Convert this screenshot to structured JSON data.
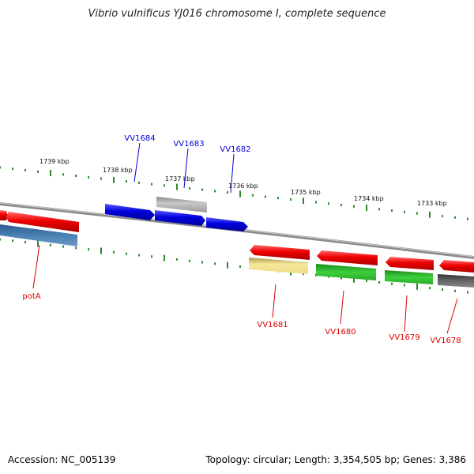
{
  "title": "Vibrio vulnificus YJ016 chromosome I, complete sequence",
  "footer": {
    "accession": "Accession: NC_005139",
    "summary": "Topology: circular; Length: 3,354,505 bp; Genes: 3,386"
  },
  "scale": {
    "unit": "kbp",
    "ticks": [
      "1739 kbp",
      "1738 kbp",
      "1737 kbp",
      "1736 kbp",
      "1735 kbp",
      "1734 kbp",
      "1733 kbp"
    ]
  },
  "genes_top": [
    {
      "label": "VV1684",
      "color": "#0000dd"
    },
    {
      "label": "VV1683",
      "color": "#0000dd"
    },
    {
      "label": "VV1682",
      "color": "#0000dd"
    }
  ],
  "genes_bottom": [
    {
      "label": "potA",
      "color": "#dd0000"
    },
    {
      "label": "VV1681",
      "color": "#dd0000"
    },
    {
      "label": "VV1680",
      "color": "#dd0000"
    },
    {
      "label": "VV1679",
      "color": "#dd0000"
    },
    {
      "label": "VV1678",
      "color": "#dd0000"
    }
  ],
  "colors": {
    "backbone": "#888888",
    "tick": "#2a8a2a",
    "red": "#ee0000",
    "blue": "#0000dd",
    "gray": "#aaaaaa",
    "green": "#33cc33",
    "yellow": "#eedd88",
    "steel": "#4477aa",
    "dark": "#555555"
  }
}
